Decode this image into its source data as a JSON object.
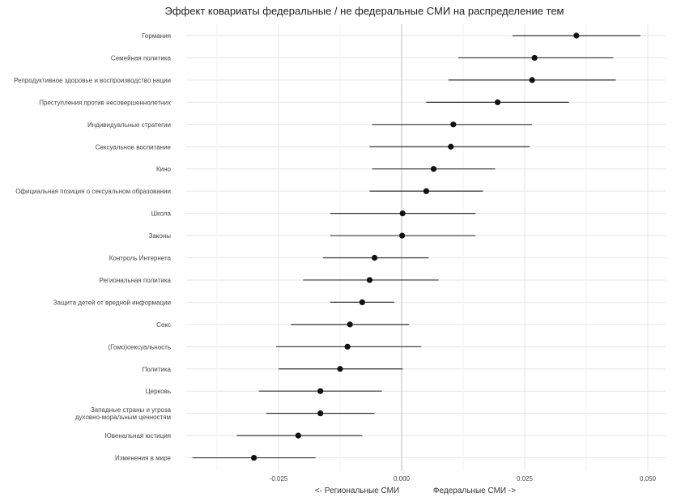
{
  "chart_data": {
    "type": "scatter",
    "title": "Эффект ковариаты федеральные / не федеральные СМИ на распределение тем",
    "xlabel_left": "<- Региональные СМИ",
    "xlabel_right": "Федеральные СМИ ->",
    "x_ticks": [
      -0.025,
      0.0,
      0.025,
      0.05
    ],
    "x_tick_labels": [
      "-0.025",
      "0.000",
      "0.025",
      "0.050"
    ],
    "xlim": [
      -0.0425,
      0.052
    ],
    "grid": true,
    "zero_line": 0.0,
    "series": [
      {
        "points": [
          {
            "label": "Германия",
            "estimate": 0.0355,
            "lower": 0.0225,
            "upper": 0.0485
          },
          {
            "label": "Семейная политика",
            "estimate": 0.027,
            "lower": 0.0115,
            "upper": 0.043
          },
          {
            "label": "Репродуктивное здоровье и воспроизводство нации",
            "estimate": 0.0265,
            "lower": 0.0095,
            "upper": 0.0435
          },
          {
            "label": "Преступления против несовершеннолетних",
            "estimate": 0.0195,
            "lower": 0.005,
            "upper": 0.034
          },
          {
            "label": "Индивидуальные стратегии",
            "estimate": 0.0105,
            "lower": -0.006,
            "upper": 0.0265
          },
          {
            "label": "Сексуальное воспитание",
            "estimate": 0.01,
            "lower": -0.0065,
            "upper": 0.026
          },
          {
            "label": "Кино",
            "estimate": 0.0065,
            "lower": -0.006,
            "upper": 0.019
          },
          {
            "label": "Официальная позиция о сексуальном образовании",
            "estimate": 0.005,
            "lower": -0.0065,
            "upper": 0.0165
          },
          {
            "label": "Школа",
            "estimate": 0.0002,
            "lower": -0.0145,
            "upper": 0.015
          },
          {
            "label": "Законы",
            "estimate": 0.0001,
            "lower": -0.0145,
            "upper": 0.015
          },
          {
            "label": "Контроль Интернета",
            "estimate": -0.0055,
            "lower": -0.016,
            "upper": 0.0055
          },
          {
            "label": "Региональная политика",
            "estimate": -0.0065,
            "lower": -0.02,
            "upper": 0.0075
          },
          {
            "label": "Защита детей от вредной информации",
            "estimate": -0.008,
            "lower": -0.0145,
            "upper": -0.0015
          },
          {
            "label": "Секс",
            "estimate": -0.0105,
            "lower": -0.0225,
            "upper": 0.0015
          },
          {
            "label": "(Гомо)сексуальность",
            "estimate": -0.011,
            "lower": -0.0255,
            "upper": 0.004
          },
          {
            "label": "Политика",
            "estimate": -0.0125,
            "lower": -0.025,
            "upper": 0.0002
          },
          {
            "label": "Церковь",
            "estimate": -0.0165,
            "lower": -0.029,
            "upper": -0.004
          },
          {
            "label": "Западные страны и угроза\nдуховно-моральным ценностям",
            "estimate": -0.0165,
            "lower": -0.0275,
            "upper": -0.0055
          },
          {
            "label": "Ювенальная юстиция",
            "estimate": -0.021,
            "lower": -0.0335,
            "upper": -0.008
          },
          {
            "label": "Изменения в мире",
            "estimate": -0.03,
            "lower": -0.0425,
            "upper": -0.0175
          }
        ]
      }
    ]
  }
}
